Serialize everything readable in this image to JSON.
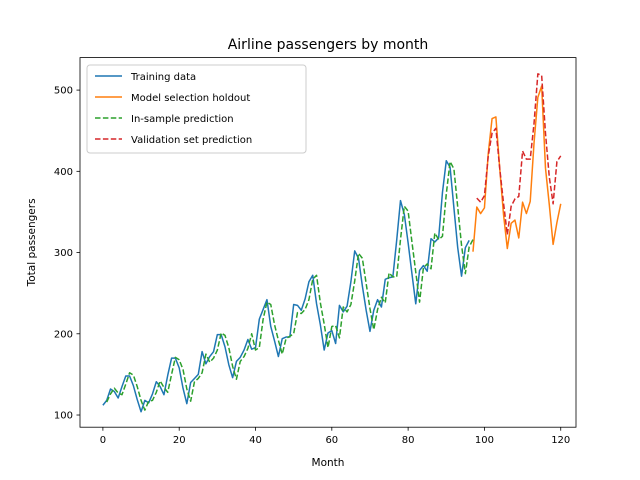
{
  "chart_data": {
    "type": "line",
    "title": "Airline passengers by month",
    "xlabel": "Month",
    "ylabel": "Total passengers",
    "xlim": [
      -6,
      124
    ],
    "ylim": [
      85,
      540
    ],
    "xticks": [
      0,
      20,
      40,
      60,
      80,
      100,
      120
    ],
    "yticks": [
      100,
      200,
      300,
      400,
      500
    ],
    "grid": false,
    "legend_position": "top-left",
    "series": [
      {
        "name": "Training data",
        "color": "#1f77b4",
        "dash": "solid",
        "x_start": 0,
        "values": [
          112,
          118,
          132,
          129,
          121,
          135,
          148,
          148,
          136,
          119,
          104,
          118,
          115,
          126,
          141,
          135,
          125,
          149,
          170,
          170,
          158,
          133,
          114,
          140,
          145,
          150,
          178,
          163,
          172,
          178,
          199,
          199,
          184,
          162,
          146,
          166,
          171,
          180,
          193,
          181,
          183,
          218,
          230,
          242,
          209,
          191,
          172,
          194,
          196,
          196,
          236,
          235,
          229,
          243,
          264,
          272,
          237,
          211,
          180,
          201,
          204,
          188,
          235,
          227,
          234,
          264,
          302,
          293,
          259,
          229,
          203,
          229,
          242,
          233,
          267,
          269,
          270,
          315,
          364,
          347,
          312,
          274,
          237,
          278,
          284,
          277,
          317,
          313,
          318,
          374,
          413,
          405,
          355,
          306,
          271,
          306,
          315
        ]
      },
      {
        "name": "Model selection holdout",
        "color": "#ff7f0e",
        "dash": "solid",
        "x_start": 97,
        "values": [
          301,
          356,
          348,
          355,
          422,
          465,
          467,
          404,
          347,
          305,
          336,
          340,
          318,
          362,
          348,
          363,
          435,
          491,
          505,
          404,
          359,
          310,
          337,
          360
        ]
      },
      {
        "name": "In-sample prediction",
        "color": "#2ca02c",
        "dash": "dashed",
        "x_start": 1,
        "values": [
          116,
          126,
          133,
          127,
          125,
          138,
          152,
          149,
          135,
          118,
          106,
          117,
          118,
          128,
          142,
          134,
          128,
          150,
          171,
          168,
          156,
          132,
          117,
          141,
          145,
          152,
          175,
          165,
          170,
          180,
          201,
          198,
          183,
          160,
          144,
          166,
          172,
          182,
          200,
          180,
          183,
          218,
          239,
          236,
          211,
          192,
          175,
          194,
          197,
          200,
          226,
          225,
          230,
          242,
          267,
          272,
          238,
          212,
          183,
          209,
          210,
          195,
          233,
          227,
          236,
          265,
          299,
          293,
          262,
          231,
          205,
          230,
          245,
          238,
          275,
          270,
          270,
          316,
          357,
          351,
          313,
          276,
          239,
          281,
          286,
          280,
          324,
          316,
          320,
          372,
          412,
          403,
          356,
          309,
          274,
          307,
          316
        ]
      },
      {
        "name": "Validation set prediction",
        "color": "#d62728",
        "dash": "dashed",
        "x_start": 98,
        "values": [
          367,
          362,
          370,
          419,
          447,
          453,
          404,
          361,
          322,
          357,
          366,
          369,
          425,
          415,
          415,
          459,
          520,
          518,
          447,
          393,
          360,
          412,
          419
        ]
      }
    ]
  }
}
